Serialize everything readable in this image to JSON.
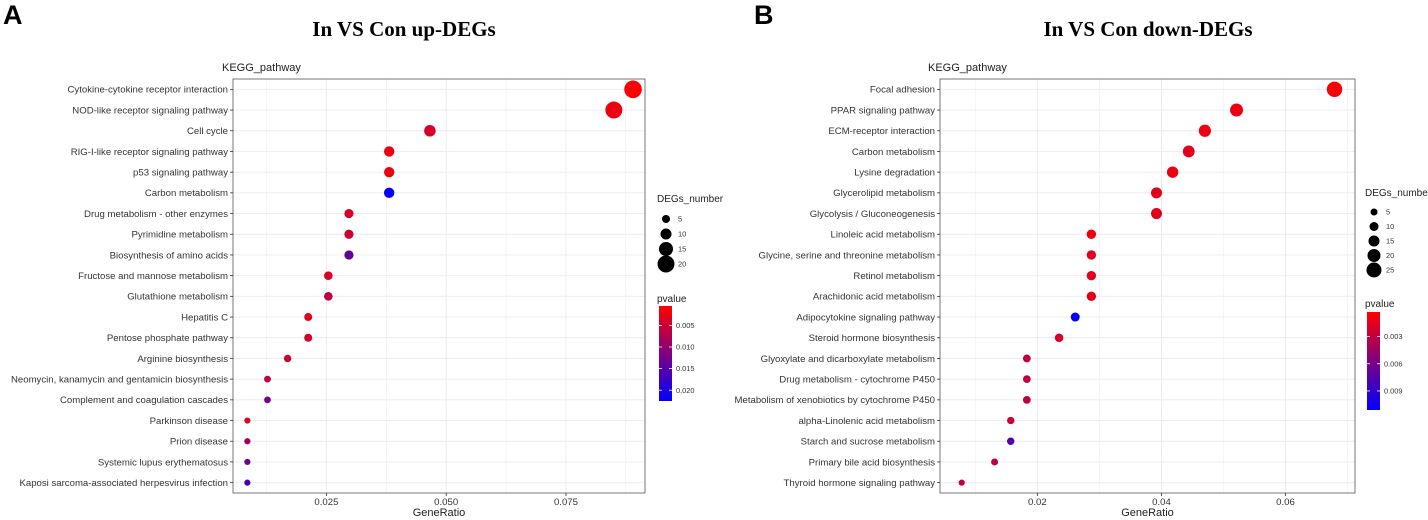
{
  "chart_data": [
    {
      "panel": "A",
      "type": "scatter",
      "title": "In VS Con up-DEGs",
      "subtitle": "KEGG_pathway",
      "xlabel": "GeneRatio",
      "xlim": [
        0.0055,
        0.0915
      ],
      "xticks": [
        0.025,
        0.05,
        0.075
      ],
      "xtick_labels": [
        "0.025",
        "0.050",
        "0.075"
      ],
      "size_legend": {
        "title": "DEGs_number",
        "breaks": [
          5,
          10,
          15,
          20
        ]
      },
      "color_legend": {
        "title": "pvalue",
        "range": [
          0.0005,
          0.0225
        ],
        "breaks": [
          0.005,
          0.01,
          0.015,
          0.02
        ],
        "labels": [
          "0.005",
          "0.010",
          "0.015",
          "0.020"
        ],
        "low_color": "#ff0000",
        "high_color": "#0000ff"
      },
      "points": [
        {
          "pathway": "Cytokine-cytokine receptor interaction",
          "gene_ratio": 0.089,
          "count": 21,
          "pvalue": 0.0008
        },
        {
          "pathway": "NOD-like receptor signaling pathway",
          "gene_ratio": 0.085,
          "count": 20,
          "pvalue": 0.002
        },
        {
          "pathway": "Cell cycle",
          "gene_ratio": 0.0466,
          "count": 11,
          "pvalue": 0.004
        },
        {
          "pathway": "RIG-I-like receptor signaling pathway",
          "gene_ratio": 0.0381,
          "count": 9,
          "pvalue": 0.002
        },
        {
          "pathway": "p53 signaling pathway",
          "gene_ratio": 0.0381,
          "count": 9,
          "pvalue": 0.002
        },
        {
          "pathway": "Carbon metabolism",
          "gene_ratio": 0.0381,
          "count": 9,
          "pvalue": 0.0222
        },
        {
          "pathway": "Drug metabolism - other enzymes",
          "gene_ratio": 0.0297,
          "count": 7,
          "pvalue": 0.004
        },
        {
          "pathway": "Pyrimidine metabolism",
          "gene_ratio": 0.0297,
          "count": 7,
          "pvalue": 0.005
        },
        {
          "pathway": "Biosynthesis of amino acids",
          "gene_ratio": 0.0297,
          "count": 7,
          "pvalue": 0.014
        },
        {
          "pathway": "Fructose and mannose metabolism",
          "gene_ratio": 0.0254,
          "count": 6,
          "pvalue": 0.004
        },
        {
          "pathway": "Glutathione metabolism",
          "gene_ratio": 0.0254,
          "count": 6,
          "pvalue": 0.006
        },
        {
          "pathway": "Hepatitis C",
          "gene_ratio": 0.0212,
          "count": 5,
          "pvalue": 0.003
        },
        {
          "pathway": "Pentose phosphate pathway",
          "gene_ratio": 0.0212,
          "count": 5,
          "pvalue": 0.004
        },
        {
          "pathway": "Arginine biosynthesis",
          "gene_ratio": 0.0169,
          "count": 4,
          "pvalue": 0.005
        },
        {
          "pathway": "Neomycin, kanamycin and gentamicin biosynthesis",
          "gene_ratio": 0.0127,
          "count": 3,
          "pvalue": 0.006
        },
        {
          "pathway": "Complement and coagulation cascades",
          "gene_ratio": 0.0127,
          "count": 3,
          "pvalue": 0.012
        },
        {
          "pathway": "Parkinson disease",
          "gene_ratio": 0.0085,
          "count": 2,
          "pvalue": 0.003
        },
        {
          "pathway": "Prion disease",
          "gene_ratio": 0.0085,
          "count": 2,
          "pvalue": 0.009
        },
        {
          "pathway": "Systemic lupus erythematosus",
          "gene_ratio": 0.0085,
          "count": 2,
          "pvalue": 0.013
        },
        {
          "pathway": "Kaposi sarcoma-associated herpesvirus infection",
          "gene_ratio": 0.0085,
          "count": 2,
          "pvalue": 0.016
        }
      ]
    },
    {
      "panel": "B",
      "type": "scatter",
      "title": "In VS Con down-DEGs",
      "subtitle": "KEGG_pathway",
      "xlabel": "GeneRatio",
      "xlim": [
        0.0043,
        0.0712
      ],
      "xticks": [
        0.02,
        0.04,
        0.06
      ],
      "xtick_labels": [
        "0.02",
        "0.04",
        "0.06"
      ],
      "size_legend": {
        "title": "DEGs_number",
        "breaks": [
          5,
          10,
          15,
          20,
          25
        ]
      },
      "color_legend": {
        "title": "pvalue",
        "range": [
          0.0003,
          0.0111
        ],
        "breaks": [
          0.003,
          0.006,
          0.009
        ],
        "labels": [
          "0.003",
          "0.006",
          "0.009"
        ],
        "low_color": "#ff0000",
        "high_color": "#0000ff"
      },
      "points": [
        {
          "pathway": "Focal adhesion",
          "gene_ratio": 0.0679,
          "count": 26,
          "pvalue": 0.0005
        },
        {
          "pathway": "PPAR signaling pathway",
          "gene_ratio": 0.0521,
          "count": 20,
          "pvalue": 0.001
        },
        {
          "pathway": "ECM-receptor interaction",
          "gene_ratio": 0.047,
          "count": 18,
          "pvalue": 0.001
        },
        {
          "pathway": "Carbon metabolism",
          "gene_ratio": 0.0444,
          "count": 17,
          "pvalue": 0.0015
        },
        {
          "pathway": "Lysine degradation",
          "gene_ratio": 0.0418,
          "count": 16,
          "pvalue": 0.001
        },
        {
          "pathway": "Glycerolipid metabolism",
          "gene_ratio": 0.0392,
          "count": 15,
          "pvalue": 0.0015
        },
        {
          "pathway": "Glycolysis / Gluconeogenesis",
          "gene_ratio": 0.0392,
          "count": 15,
          "pvalue": 0.0015
        },
        {
          "pathway": "Linoleic acid metabolism",
          "gene_ratio": 0.0287,
          "count": 11,
          "pvalue": 0.001
        },
        {
          "pathway": "Glycine, serine and threonine metabolism",
          "gene_ratio": 0.0287,
          "count": 11,
          "pvalue": 0.0015
        },
        {
          "pathway": "Retinol metabolism",
          "gene_ratio": 0.0287,
          "count": 11,
          "pvalue": 0.0015
        },
        {
          "pathway": "Arachidonic acid metabolism",
          "gene_ratio": 0.0287,
          "count": 11,
          "pvalue": 0.0015
        },
        {
          "pathway": "Adipocytokine signaling pathway",
          "gene_ratio": 0.0261,
          "count": 10,
          "pvalue": 0.0108
        },
        {
          "pathway": "Steroid hormone biosynthesis",
          "gene_ratio": 0.0235,
          "count": 9,
          "pvalue": 0.002
        },
        {
          "pathway": "Glyoxylate and dicarboxylate metabolism",
          "gene_ratio": 0.0183,
          "count": 7,
          "pvalue": 0.003
        },
        {
          "pathway": "Drug metabolism - cytochrome P450",
          "gene_ratio": 0.0183,
          "count": 7,
          "pvalue": 0.003
        },
        {
          "pathway": "Metabolism of xenobiotics by cytochrome P450",
          "gene_ratio": 0.0183,
          "count": 7,
          "pvalue": 0.003
        },
        {
          "pathway": "alpha-Linolenic acid metabolism",
          "gene_ratio": 0.0157,
          "count": 6,
          "pvalue": 0.0025
        },
        {
          "pathway": "Starch and sucrose metabolism",
          "gene_ratio": 0.0157,
          "count": 6,
          "pvalue": 0.0075
        },
        {
          "pathway": "Primary bile acid biosynthesis",
          "gene_ratio": 0.0131,
          "count": 5,
          "pvalue": 0.003
        },
        {
          "pathway": "Thyroid hormone signaling pathway",
          "gene_ratio": 0.0078,
          "count": 3,
          "pvalue": 0.003
        }
      ]
    }
  ]
}
